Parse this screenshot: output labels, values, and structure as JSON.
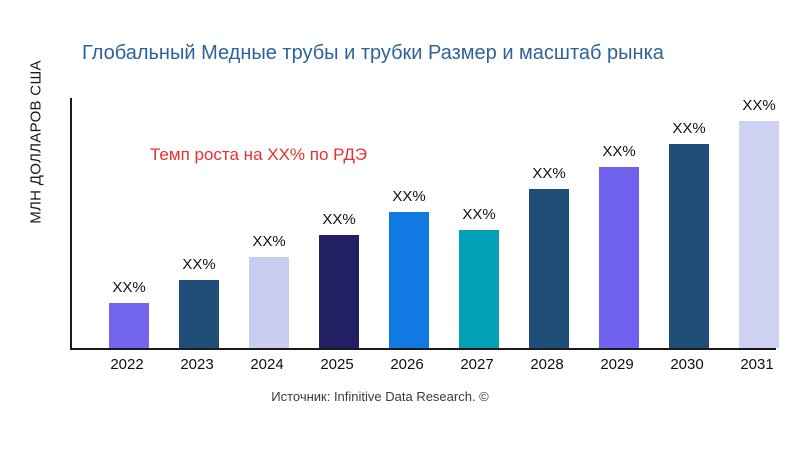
{
  "chart_data": {
    "type": "bar",
    "title": "Глобальный Медные трубы и трубки Размер и масштаб рынка",
    "xlabel": "",
    "ylabel": "МЛН ДОЛЛАРОВ США",
    "categories": [
      "2022",
      "2023",
      "2024",
      "2025",
      "2026",
      "2027",
      "2028",
      "2029",
      "2030",
      "2031"
    ],
    "values_masked": true,
    "bar_value_labels": [
      "XX%",
      "XX%",
      "XX%",
      "XX%",
      "XX%",
      "XX%",
      "XX%",
      "XX%",
      "XX%",
      "XX%"
    ],
    "relative_heights": [
      0.18,
      0.27,
      0.36,
      0.45,
      0.54,
      0.47,
      0.63,
      0.72,
      0.81,
      0.9
    ],
    "bar_colors": [
      "#7365ec",
      "#1f4e79",
      "#c9cdef",
      "#221f63",
      "#1179e2",
      "#02a0b5",
      "#1f4e79",
      "#7062ee",
      "#1f4e79",
      "#cdd1f2"
    ],
    "grid": false,
    "legend": "none",
    "annotation": {
      "text": "Темп роста на XX% по РДЭ",
      "color": "#e8312e"
    },
    "source": "Источник: Infinitive Data Research. ©",
    "title_color": "#2e6399",
    "axis_color": "#1a1a1a"
  }
}
